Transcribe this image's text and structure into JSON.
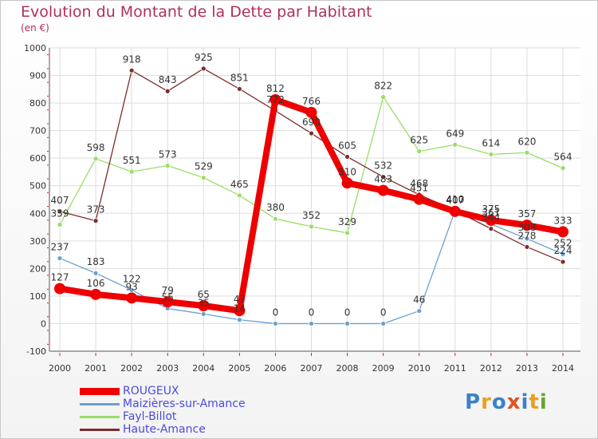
{
  "title": "Evolution du Montant de la Dette par Habitant",
  "subtitle": "(en €)",
  "logo": {
    "text": "Proxiti",
    "colors": [
      "#3a82c8",
      "#e8a020",
      "#3a82c8",
      "#e05020",
      "#3a82c8",
      "#e8a020",
      "#60a830"
    ]
  },
  "chart_data": {
    "type": "line",
    "x": [
      2000,
      2001,
      2002,
      2003,
      2004,
      2005,
      2006,
      2007,
      2008,
      2009,
      2010,
      2011,
      2012,
      2013,
      2014
    ],
    "ylim": [
      -100,
      1000
    ],
    "yticks": [
      -100,
      0,
      100,
      200,
      300,
      400,
      500,
      600,
      700,
      800,
      900,
      1000
    ],
    "grid": true,
    "legend_position": "bottom-left",
    "series": [
      {
        "name": "ROUGEUX",
        "color": "#ee0000",
        "values": [
          127,
          106,
          93,
          79,
          65,
          47,
          812,
          766,
          510,
          483,
          451,
          407,
          375,
          357,
          333
        ],
        "labels": [
          "127",
          "106",
          "93",
          "79",
          "65",
          "47",
          "812",
          "766",
          "510",
          "483",
          "451",
          "407",
          "375",
          "357",
          "333"
        ]
      },
      {
        "name": "Maizières-sur-Amance",
        "color": "#6aa0d0",
        "values": [
          237,
          183,
          122,
          55,
          35,
          14,
          0,
          0,
          0,
          0,
          46,
          410,
          361,
          308,
          252
        ],
        "labels": [
          "237",
          "183",
          "122",
          "55",
          "35",
          "14",
          "0",
          "0",
          "0",
          "0",
          "46",
          "410",
          "361",
          "308",
          "252"
        ]
      },
      {
        "name": "Fayl-Billot",
        "color": "#99dd66",
        "values": [
          359,
          598,
          551,
          573,
          529,
          465,
          380,
          352,
          329,
          822,
          625,
          649,
          614,
          620,
          564
        ],
        "labels": [
          "359",
          "598",
          "551",
          "573",
          "529",
          "465",
          "380",
          "352",
          "329",
          "822",
          "625",
          "649",
          "614",
          "620",
          "564"
        ]
      },
      {
        "name": "Haute-Amance",
        "color": "#7a2e2e",
        "values": [
          407,
          373,
          918,
          843,
          925,
          851,
          772,
          690,
          605,
          532,
          468,
          410,
          344,
          278,
          224
        ],
        "labels": [
          "407",
          "373",
          "918",
          "843",
          "925",
          "851",
          "772",
          "690",
          "605",
          "532",
          "468",
          "410",
          "344",
          "278",
          "224"
        ]
      }
    ]
  }
}
